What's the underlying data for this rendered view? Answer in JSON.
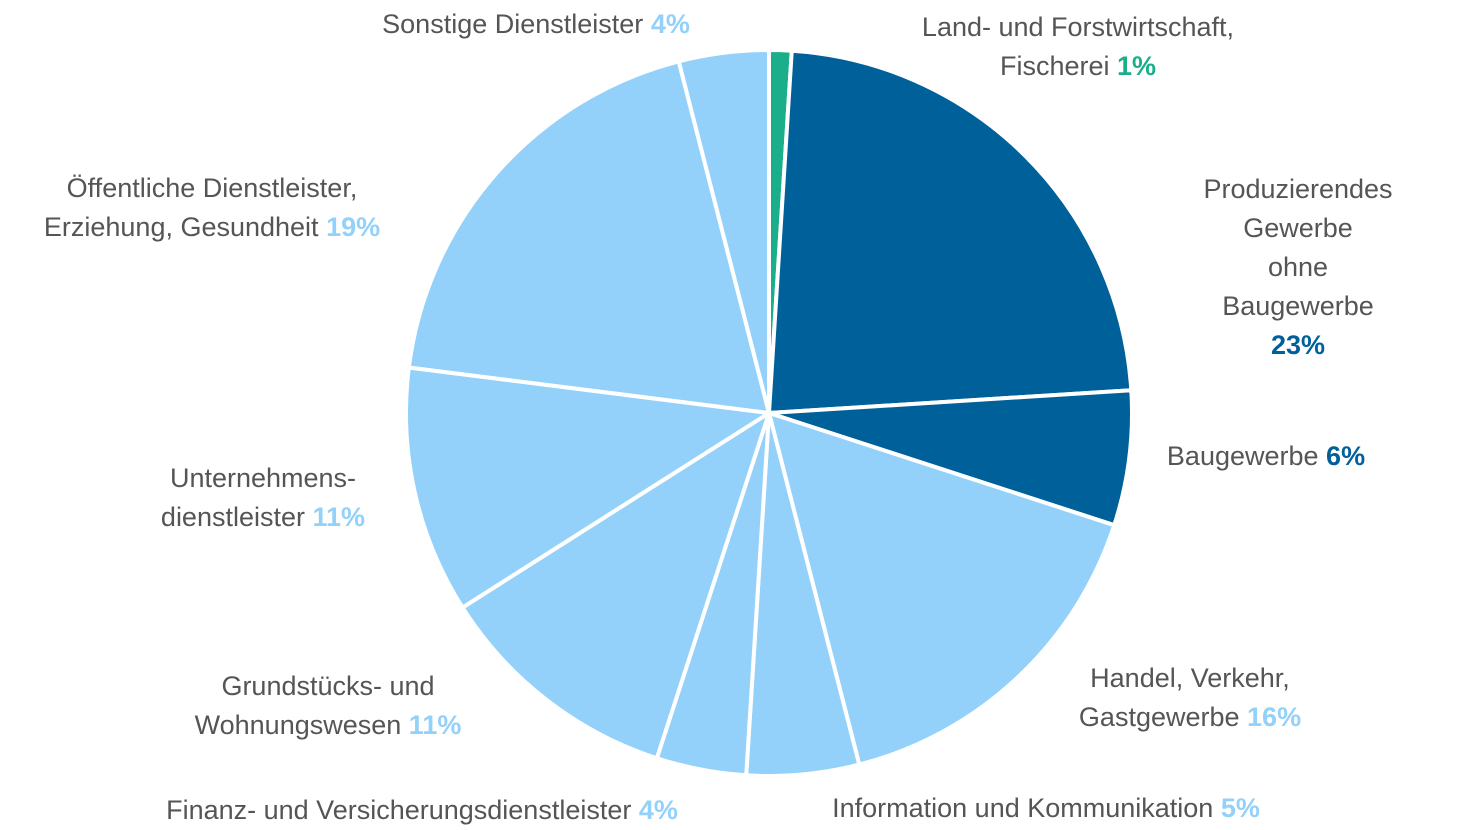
{
  "chart_data": {
    "type": "pie",
    "categories": [
      "Land- und Forstwirtschaft, Fischerei",
      "Produzierendes Gewerbe\nohne Baugewerbe",
      "Baugewerbe",
      "Handel, Verkehr,\nGastgewerbe",
      "Information und Kommunikation",
      "Finanz- und Versicherungsdienstleister",
      "Grundstücks- und\nWohnungswesen",
      "Unternehmens-\ndienstleister",
      "Öffentliche Dienstleister,\nErziehung, Gesundheit",
      "Sonstige Dienstleister"
    ],
    "values": [
      1,
      23,
      6,
      16,
      5,
      4,
      11,
      11,
      19,
      4
    ],
    "value_labels": [
      "1%",
      "23%",
      "6%",
      "16%",
      "5%",
      "4%",
      "11%",
      "11%",
      "19%",
      "4%"
    ],
    "colors": [
      "#1aae8a",
      "#00609a",
      "#00609a",
      "#93d1fa",
      "#93d1fa",
      "#93d1fa",
      "#93d1fa",
      "#93d1fa",
      "#93d1fa",
      "#93d1fa"
    ]
  }
}
